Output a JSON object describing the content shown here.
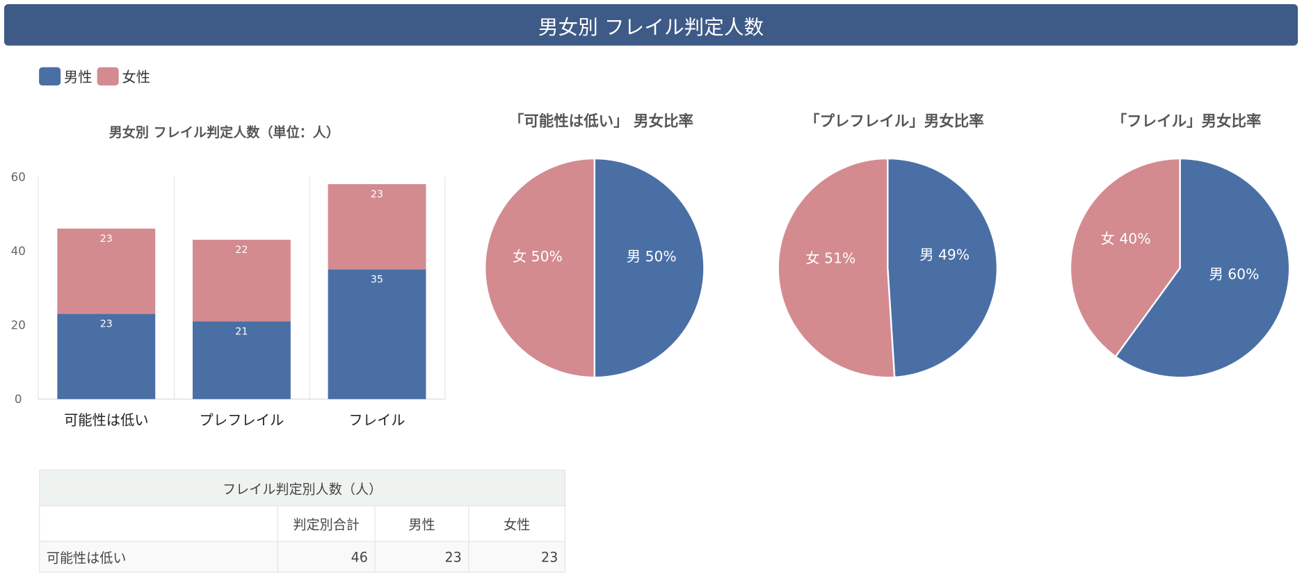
{
  "header": {
    "title": "男女別 フレイル判定人数"
  },
  "legend": [
    {
      "label": "男性",
      "color": "#4a6fa5"
    },
    {
      "label": "女性",
      "color": "#d38b90"
    }
  ],
  "chart_data": [
    {
      "type": "bar",
      "stacked": true,
      "title": "男女別 フレイル判定人数（単位：人）",
      "categories": [
        "可能性は低い",
        "プレフレイル",
        "フレイル"
      ],
      "series": [
        {
          "name": "男性",
          "values": [
            23,
            21,
            35
          ],
          "color": "#4a6fa5"
        },
        {
          "name": "女性",
          "values": [
            23,
            22,
            23
          ],
          "color": "#d38b90"
        }
      ],
      "ylim": [
        0,
        60
      ],
      "yticks": [
        0,
        20,
        40,
        60
      ],
      "grid": "vertical",
      "legend": "top-left"
    },
    {
      "type": "pie",
      "title": "「可能性は低い」 男女比率",
      "slices": [
        {
          "label": "男",
          "value": 50,
          "color": "#4a6fa5"
        },
        {
          "label": "女",
          "value": 50,
          "color": "#d38b90"
        }
      ]
    },
    {
      "type": "pie",
      "title": "「プレフレイル」男女比率",
      "slices": [
        {
          "label": "男",
          "value": 49,
          "color": "#4a6fa5"
        },
        {
          "label": "女",
          "value": 51,
          "color": "#d38b90"
        }
      ]
    },
    {
      "type": "pie",
      "title": "「フレイル」男女比率",
      "slices": [
        {
          "label": "男",
          "value": 60,
          "color": "#4a6fa5"
        },
        {
          "label": "女",
          "value": 40,
          "color": "#d38b90"
        }
      ]
    }
  ],
  "table": {
    "caption": "フレイル判定別人数（人）",
    "headers": [
      "",
      "判定別合計",
      "男性",
      "女性"
    ],
    "rows": [
      [
        "可能性は低い",
        "46",
        "23",
        "23"
      ]
    ]
  }
}
